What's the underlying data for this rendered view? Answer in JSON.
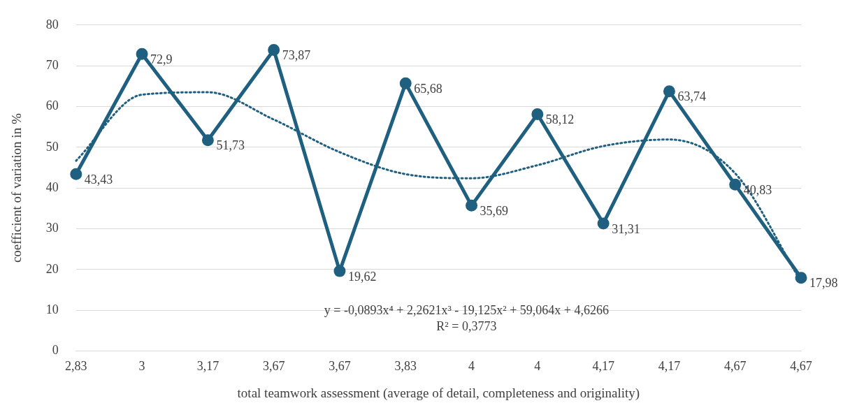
{
  "chart_data": {
    "type": "line",
    "xlabel": "total teamwork assessment (average of detail, completeness and originality)",
    "ylabel": "coefficient of variation in %",
    "categories": [
      "2,83",
      "3",
      "3,17",
      "3,67",
      "3,67",
      "3,83",
      "4",
      "4",
      "4,17",
      "4,17",
      "4,67",
      "4,67"
    ],
    "series": [
      {
        "type": "line",
        "color": "#1f5f7f",
        "marker": "circle",
        "line_style": "solid",
        "values": [
          43.43,
          72.9,
          51.73,
          73.87,
          19.62,
          65.68,
          35.69,
          58.12,
          31.31,
          63.74,
          40.83,
          17.98
        ],
        "value_labels": [
          "43,43",
          "72,9",
          "51,73",
          "73,87",
          "19,62",
          "65,68",
          "35,69",
          "58,12",
          "31,31",
          "63,74",
          "40,83",
          "17,98"
        ]
      },
      {
        "type": "line",
        "color": "#1f5f7f",
        "marker": "none",
        "line_style": "dotted",
        "values": [
          46.7,
          62.9,
          63.5,
          56.8,
          48.8,
          43.4,
          42.4,
          45.6,
          50.3,
          51.9,
          43.6,
          17
        ]
      }
    ],
    "ylim": [
      0,
      80
    ],
    "yticks": [
      0,
      10,
      20,
      30,
      40,
      50,
      60,
      70,
      80
    ],
    "grid": "y",
    "legend": false,
    "annotations": [
      "y = -0,0893x⁴ + 2,2621x³ - 19,125x² + 59,064x + 4,6266",
      "R² = 0,3773"
    ]
  }
}
